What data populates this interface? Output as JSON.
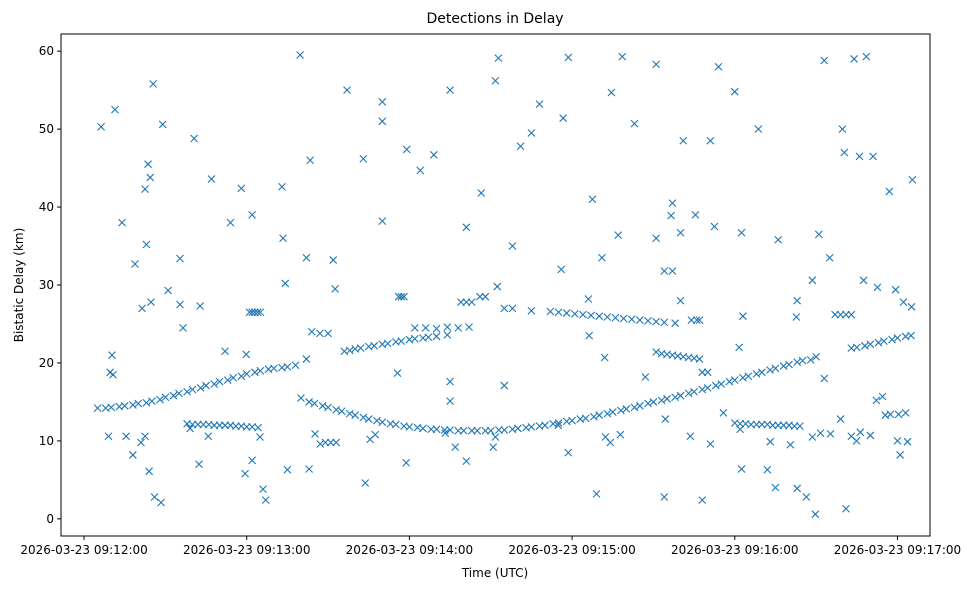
{
  "chart_data": {
    "type": "scatter",
    "title": "Detections in Delay",
    "xlabel": "Time (UTC)",
    "ylabel": "Bistatic Delay (km)",
    "x_units": "seconds after 2026-03-23 09:12:00",
    "xlim": [
      -8.5,
      312
    ],
    "ylim": [
      -2.2,
      62.2
    ],
    "grid": false,
    "marker": "x",
    "color": "#1f77b4",
    "xticks": [
      {
        "value": 0,
        "label": "2026-03-23 09:12:00"
      },
      {
        "value": 60,
        "label": "2026-03-23 09:13:00"
      },
      {
        "value": 120,
        "label": "2026-03-23 09:14:00"
      },
      {
        "value": 180,
        "label": "2026-03-23 09:15:00"
      },
      {
        "value": 240,
        "label": "2026-03-23 09:16:00"
      },
      {
        "value": 300,
        "label": "2026-03-23 09:17:00"
      }
    ],
    "yticks": [
      {
        "value": 0,
        "label": "0"
      },
      {
        "value": 10,
        "label": "10"
      },
      {
        "value": 20,
        "label": "20"
      },
      {
        "value": 30,
        "label": "30"
      },
      {
        "value": 40,
        "label": "40"
      },
      {
        "value": 50,
        "label": "50"
      },
      {
        "value": 60,
        "label": "60"
      }
    ],
    "points": [
      [
        5,
        14.2
      ],
      [
        8,
        14.2
      ],
      [
        10,
        14.3
      ],
      [
        13,
        14.4
      ],
      [
        15,
        14.5
      ],
      [
        18,
        14.6
      ],
      [
        20,
        14.8
      ],
      [
        23,
        14.9
      ],
      [
        25,
        15.1
      ],
      [
        28,
        15.3
      ],
      [
        30,
        15.6
      ],
      [
        33,
        15.8
      ],
      [
        35,
        16.1
      ],
      [
        38,
        16.3
      ],
      [
        40,
        16.6
      ],
      [
        43,
        16.8
      ],
      [
        45,
        17.1
      ],
      [
        48,
        17.3
      ],
      [
        50,
        17.6
      ],
      [
        53,
        17.8
      ],
      [
        55,
        18.1
      ],
      [
        58,
        18.3
      ],
      [
        60,
        18.6
      ],
      [
        63,
        18.8
      ],
      [
        65,
        19.0
      ],
      [
        68,
        19.2
      ],
      [
        70,
        19.3
      ],
      [
        73,
        19.4
      ],
      [
        75,
        19.5
      ],
      [
        78,
        19.7
      ],
      [
        82,
        20.5
      ],
      [
        96,
        21.5
      ],
      [
        98,
        21.6
      ],
      [
        100,
        21.8
      ],
      [
        102,
        21.9
      ],
      [
        105,
        22.1
      ],
      [
        107,
        22.2
      ],
      [
        110,
        22.4
      ],
      [
        112,
        22.5
      ],
      [
        115,
        22.7
      ],
      [
        117,
        22.8
      ],
      [
        120,
        23.0
      ],
      [
        122,
        23.1
      ],
      [
        125,
        23.2
      ],
      [
        127,
        23.3
      ],
      [
        130,
        23.4
      ],
      [
        134,
        23.6
      ],
      [
        80,
        15.5
      ],
      [
        83,
        15.0
      ],
      [
        85,
        14.8
      ],
      [
        88,
        14.5
      ],
      [
        90,
        14.3
      ],
      [
        93,
        14.0
      ],
      [
        95,
        13.8
      ],
      [
        98,
        13.5
      ],
      [
        100,
        13.3
      ],
      [
        103,
        13.0
      ],
      [
        105,
        12.8
      ],
      [
        108,
        12.6
      ],
      [
        110,
        12.4
      ],
      [
        113,
        12.2
      ],
      [
        115,
        12.1
      ],
      [
        118,
        11.9
      ],
      [
        120,
        11.8
      ],
      [
        123,
        11.7
      ],
      [
        125,
        11.6
      ],
      [
        128,
        11.5
      ],
      [
        130,
        11.5
      ],
      [
        133,
        11.4
      ],
      [
        135,
        11.4
      ],
      [
        138,
        11.3
      ],
      [
        140,
        11.3
      ],
      [
        143,
        11.3
      ],
      [
        145,
        11.3
      ],
      [
        148,
        11.3
      ],
      [
        150,
        11.3
      ],
      [
        153,
        11.4
      ],
      [
        155,
        11.4
      ],
      [
        158,
        11.5
      ],
      [
        160,
        11.6
      ],
      [
        163,
        11.7
      ],
      [
        165,
        11.8
      ],
      [
        168,
        11.9
      ],
      [
        170,
        12.0
      ],
      [
        173,
        12.2
      ],
      [
        175,
        12.3
      ],
      [
        178,
        12.5
      ],
      [
        180,
        12.6
      ],
      [
        183,
        12.8
      ],
      [
        185,
        12.9
      ],
      [
        188,
        13.1
      ],
      [
        190,
        13.3
      ],
      [
        193,
        13.5
      ],
      [
        195,
        13.7
      ],
      [
        198,
        13.9
      ],
      [
        200,
        14.1
      ],
      [
        203,
        14.3
      ],
      [
        205,
        14.5
      ],
      [
        208,
        14.8
      ],
      [
        210,
        15.0
      ],
      [
        213,
        15.2
      ],
      [
        215,
        15.4
      ],
      [
        218,
        15.6
      ],
      [
        220,
        15.8
      ],
      [
        223,
        16.1
      ],
      [
        225,
        16.3
      ],
      [
        228,
        16.6
      ],
      [
        230,
        16.8
      ],
      [
        233,
        17.1
      ],
      [
        235,
        17.3
      ],
      [
        238,
        17.6
      ],
      [
        240,
        17.8
      ],
      [
        243,
        18.1
      ],
      [
        245,
        18.3
      ],
      [
        248,
        18.6
      ],
      [
        250,
        18.8
      ],
      [
        253,
        19.1
      ],
      [
        255,
        19.3
      ],
      [
        258,
        19.6
      ],
      [
        260,
        19.8
      ],
      [
        263,
        20.1
      ],
      [
        265,
        20.3
      ],
      [
        268,
        20.4
      ],
      [
        270,
        20.8
      ],
      [
        283,
        21.9
      ],
      [
        285,
        22.0
      ],
      [
        288,
        22.2
      ],
      [
        290,
        22.4
      ],
      [
        293,
        22.6
      ],
      [
        295,
        22.8
      ],
      [
        298,
        23.0
      ],
      [
        300,
        23.2
      ],
      [
        303,
        23.4
      ],
      [
        305,
        23.5
      ],
      [
        172,
        26.6
      ],
      [
        175,
        26.5
      ],
      [
        178,
        26.4
      ],
      [
        181,
        26.3
      ],
      [
        184,
        26.2
      ],
      [
        187,
        26.1
      ],
      [
        190,
        26.0
      ],
      [
        193,
        25.9
      ],
      [
        196,
        25.8
      ],
      [
        199,
        25.7
      ],
      [
        202,
        25.6
      ],
      [
        205,
        25.5
      ],
      [
        208,
        25.4
      ],
      [
        211,
        25.3
      ],
      [
        214,
        25.2
      ],
      [
        218,
        25.1
      ],
      [
        211,
        21.4
      ],
      [
        213,
        21.2
      ],
      [
        215,
        21.1
      ],
      [
        217,
        21.0
      ],
      [
        219,
        20.9
      ],
      [
        221,
        20.8
      ],
      [
        223,
        20.7
      ],
      [
        225,
        20.6
      ],
      [
        227,
        20.5
      ],
      [
        38,
        12.2
      ],
      [
        40,
        12.1
      ],
      [
        42,
        12.1
      ],
      [
        44,
        12.1
      ],
      [
        46,
        12.1
      ],
      [
        48,
        12.0
      ],
      [
        50,
        12.0
      ],
      [
        52,
        12.0
      ],
      [
        54,
        12.0
      ],
      [
        56,
        11.9
      ],
      [
        58,
        11.9
      ],
      [
        60,
        11.8
      ],
      [
        62,
        11.8
      ],
      [
        240,
        12.3
      ],
      [
        242,
        12.2
      ],
      [
        244,
        12.2
      ],
      [
        246,
        12.1
      ],
      [
        248,
        12.1
      ],
      [
        250,
        12.1
      ],
      [
        252,
        12.1
      ],
      [
        254,
        12.0
      ],
      [
        256,
        12.0
      ],
      [
        258,
        12.0
      ],
      [
        260,
        12.0
      ],
      [
        262,
        11.9
      ],
      [
        264,
        11.9
      ],
      [
        61,
        26.5
      ],
      [
        62,
        26.5
      ],
      [
        63,
        26.5
      ],
      [
        64,
        26.5
      ],
      [
        65,
        26.5
      ],
      [
        116,
        28.5
      ],
      [
        117,
        28.5
      ],
      [
        118,
        28.5
      ],
      [
        139,
        27.8
      ],
      [
        141,
        27.8
      ],
      [
        143,
        27.8
      ],
      [
        146,
        28.5
      ],
      [
        148,
        28.5
      ],
      [
        155,
        27
      ],
      [
        158,
        27
      ],
      [
        122,
        24.5
      ],
      [
        126,
        24.5
      ],
      [
        130,
        24.4
      ],
      [
        134,
        24.6
      ],
      [
        138,
        24.5
      ],
      [
        142,
        24.6
      ],
      [
        89,
        9.8
      ],
      [
        91,
        9.8
      ],
      [
        93,
        9.8
      ],
      [
        84,
        24
      ],
      [
        87,
        23.8
      ],
      [
        90,
        23.8
      ],
      [
        277,
        26.2
      ],
      [
        279,
        26.2
      ],
      [
        281,
        26.2
      ],
      [
        283,
        26.2
      ],
      [
        224,
        25.5
      ],
      [
        226,
        25.5
      ],
      [
        227,
        25.5
      ],
      [
        228,
        18.8
      ],
      [
        230,
        18.8
      ],
      [
        220,
        28
      ],
      [
        6.3,
        50.3
      ],
      [
        11.4,
        52.5
      ],
      [
        14,
        38
      ],
      [
        18.8,
        32.7
      ],
      [
        22.5,
        42.3
      ],
      [
        23,
        35.2
      ],
      [
        23.6,
        45.5
      ],
      [
        24.4,
        43.8
      ],
      [
        25.5,
        55.8
      ],
      [
        29,
        50.6
      ],
      [
        35.4,
        33.4
      ],
      [
        40.6,
        48.8
      ],
      [
        47,
        43.6
      ],
      [
        54,
        38
      ],
      [
        58,
        42.4
      ],
      [
        62,
        39
      ],
      [
        73,
        42.6
      ],
      [
        79.7,
        59.5
      ],
      [
        83.4,
        46
      ],
      [
        82,
        33.5
      ],
      [
        97,
        55
      ],
      [
        103,
        46.2
      ],
      [
        110,
        53.5
      ],
      [
        110,
        51
      ],
      [
        110,
        38.2
      ],
      [
        119,
        47.4
      ],
      [
        124,
        44.7
      ],
      [
        129,
        46.7
      ],
      [
        135,
        55
      ],
      [
        141,
        37.4
      ],
      [
        146.5,
        41.8
      ],
      [
        151.7,
        56.2
      ],
      [
        152.8,
        59.1
      ],
      [
        158,
        35
      ],
      [
        161,
        47.8
      ],
      [
        165,
        49.5
      ],
      [
        168,
        53.2
      ],
      [
        176,
        32
      ],
      [
        176.7,
        51.4
      ],
      [
        178.6,
        59.2
      ],
      [
        187.5,
        41
      ],
      [
        191,
        33.5
      ],
      [
        194.5,
        54.7
      ],
      [
        197,
        36.4
      ],
      [
        198.5,
        59.3
      ],
      [
        203,
        50.7
      ],
      [
        211,
        58.3
      ],
      [
        211,
        36
      ],
      [
        214,
        31.8
      ],
      [
        217,
        40.5
      ],
      [
        221,
        48.5
      ],
      [
        225.5,
        39
      ],
      [
        231,
        48.5
      ],
      [
        232.5,
        37.5
      ],
      [
        234,
        58
      ],
      [
        240,
        54.8
      ],
      [
        242.5,
        36.7
      ],
      [
        248.7,
        50
      ],
      [
        256,
        35.8
      ],
      [
        273,
        58.8
      ],
      [
        275,
        33.5
      ],
      [
        279.7,
        50
      ],
      [
        280.4,
        47
      ],
      [
        284,
        59
      ],
      [
        286,
        46.5
      ],
      [
        288.5,
        59.3
      ],
      [
        291,
        46.5
      ],
      [
        297,
        42
      ],
      [
        305.5,
        43.5
      ],
      [
        9,
        10.6
      ],
      [
        10.3,
        21
      ],
      [
        18,
        8.2
      ],
      [
        24,
        6.1
      ],
      [
        26,
        2.8
      ],
      [
        28.4,
        2.1
      ],
      [
        42.4,
        7
      ],
      [
        59.4,
        5.8
      ],
      [
        62,
        7.5
      ],
      [
        66,
        3.8
      ],
      [
        67,
        2.4
      ],
      [
        75,
        6.3
      ],
      [
        83,
        6.4
      ],
      [
        103.7,
        4.6
      ],
      [
        118.8,
        7.2
      ],
      [
        141,
        7.4
      ],
      [
        155,
        17.1
      ],
      [
        178.6,
        8.5
      ],
      [
        189,
        3.2
      ],
      [
        214,
        2.8
      ],
      [
        228,
        2.4
      ],
      [
        242.5,
        6.4
      ],
      [
        252,
        6.3
      ],
      [
        255,
        4
      ],
      [
        263,
        3.9
      ],
      [
        266.4,
        2.8
      ],
      [
        269.7,
        0.6
      ],
      [
        281,
        1.3
      ],
      [
        301,
        8.2
      ],
      [
        300,
        10
      ],
      [
        9.6,
        18.8
      ],
      [
        10.7,
        18.5
      ],
      [
        21.4,
        27
      ],
      [
        24.7,
        27.8
      ],
      [
        31,
        29.3
      ],
      [
        35.4,
        27.5
      ],
      [
        36.5,
        24.5
      ],
      [
        42.8,
        27.3
      ],
      [
        52,
        21.5
      ],
      [
        59.8,
        21.1
      ],
      [
        73.4,
        36
      ],
      [
        74.2,
        30.2
      ],
      [
        91.9,
        33.2
      ],
      [
        92.6,
        29.5
      ],
      [
        115.6,
        18.7
      ],
      [
        135,
        17.6
      ],
      [
        135,
        15.1
      ],
      [
        152.4,
        29.8
      ],
      [
        165,
        26.7
      ],
      [
        186,
        28.2
      ],
      [
        186.3,
        23.5
      ],
      [
        192,
        20.7
      ],
      [
        207,
        18.2
      ],
      [
        216.5,
        38.9
      ],
      [
        220,
        36.7
      ],
      [
        217,
        31.8
      ],
      [
        241.6,
        22
      ],
      [
        243,
        26
      ],
      [
        263,
        28
      ],
      [
        262.7,
        25.9
      ],
      [
        268.6,
        30.6
      ],
      [
        271,
        36.5
      ],
      [
        273,
        18
      ],
      [
        287.5,
        30.6
      ],
      [
        292.6,
        29.7
      ],
      [
        295.5,
        13.3
      ],
      [
        299.3,
        29.4
      ],
      [
        302.2,
        27.8
      ],
      [
        305.2,
        27.2
      ],
      [
        15.5,
        10.6
      ],
      [
        21,
        9.8
      ],
      [
        22.5,
        10.6
      ],
      [
        39.1,
        11.6
      ],
      [
        45.8,
        10.6
      ],
      [
        64.2,
        11.7
      ],
      [
        64.9,
        10.5
      ],
      [
        85.2,
        10.9
      ],
      [
        87.1,
        9.6
      ],
      [
        105.5,
        10.2
      ],
      [
        107.4,
        10.8
      ],
      [
        133.2,
        11
      ],
      [
        136.9,
        9.2
      ],
      [
        150.9,
        9.2
      ],
      [
        151.7,
        10.5
      ],
      [
        174.9,
        12
      ],
      [
        192.3,
        10.5
      ],
      [
        194.1,
        9.8
      ],
      [
        197.8,
        10.8
      ],
      [
        214.4,
        12.8
      ],
      [
        223.6,
        10.6
      ],
      [
        231,
        9.6
      ],
      [
        235.8,
        13.6
      ],
      [
        242,
        11.5
      ],
      [
        253.1,
        9.9
      ],
      [
        260.5,
        9.5
      ],
      [
        268.6,
        10.5
      ],
      [
        271.6,
        11
      ],
      [
        275.3,
        10.9
      ],
      [
        279,
        12.8
      ],
      [
        283,
        10.6
      ],
      [
        284.9,
        10
      ],
      [
        286.3,
        11.1
      ],
      [
        290,
        10.7
      ],
      [
        292.2,
        15.2
      ],
      [
        294.5,
        15.7
      ],
      [
        297.4,
        13.4
      ],
      [
        300.4,
        13.4
      ],
      [
        303,
        13.6
      ],
      [
        303.7,
        9.9
      ]
    ]
  }
}
